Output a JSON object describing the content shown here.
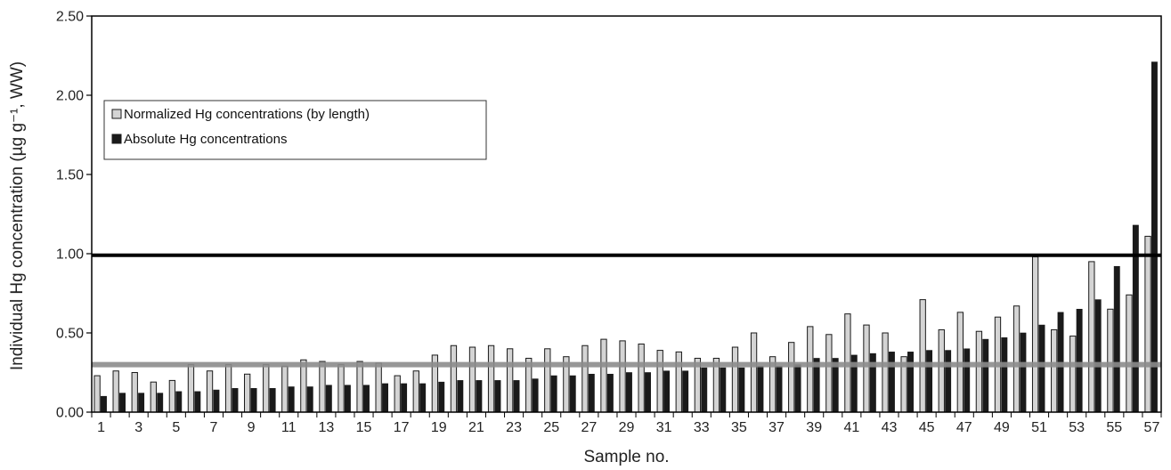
{
  "chart_data": {
    "type": "bar",
    "xlabel": "Sample no.",
    "ylabel": "Individual Hg concentration (µg g⁻¹, WW)",
    "ylim": [
      0,
      2.5
    ],
    "yticks": [
      "0.00",
      "0.50",
      "1.00",
      "1.50",
      "2.00",
      "2.50"
    ],
    "xticks": [
      "1",
      "3",
      "5",
      "7",
      "9",
      "11",
      "13",
      "15",
      "17",
      "19",
      "21",
      "23",
      "25",
      "27",
      "29",
      "31",
      "33",
      "35",
      "37",
      "39",
      "41",
      "43",
      "45",
      "47",
      "49",
      "51",
      "53",
      "55",
      "57"
    ],
    "categories": [
      1,
      2,
      3,
      4,
      5,
      6,
      7,
      8,
      9,
      10,
      11,
      12,
      13,
      14,
      15,
      16,
      17,
      18,
      19,
      20,
      21,
      22,
      23,
      24,
      25,
      26,
      27,
      28,
      29,
      30,
      31,
      32,
      33,
      34,
      35,
      36,
      37,
      38,
      39,
      40,
      41,
      42,
      43,
      44,
      45,
      46,
      47,
      48,
      49,
      50,
      51,
      52,
      53,
      54,
      55,
      56,
      57
    ],
    "series": [
      {
        "name": "Normalized Hg concentrations (by length)",
        "color": "#d4d4d4",
        "values": [
          0.23,
          0.26,
          0.25,
          0.19,
          0.2,
          0.3,
          0.26,
          0.3,
          0.24,
          0.3,
          0.29,
          0.33,
          0.32,
          0.3,
          0.32,
          0.31,
          0.23,
          0.26,
          0.36,
          0.42,
          0.41,
          0.42,
          0.4,
          0.34,
          0.4,
          0.35,
          0.42,
          0.46,
          0.45,
          0.43,
          0.39,
          0.38,
          0.34,
          0.34,
          0.41,
          0.5,
          0.35,
          0.44,
          0.54,
          0.49,
          0.62,
          0.55,
          0.5,
          0.35,
          0.71,
          0.52,
          0.63,
          0.51,
          0.6,
          0.67,
          0.98,
          0.52,
          0.48,
          0.95,
          0.65,
          0.74,
          1.11
        ]
      },
      {
        "name": "Absolute Hg concentrations",
        "color": "#1a1a1a",
        "values": [
          0.1,
          0.12,
          0.12,
          0.12,
          0.13,
          0.13,
          0.14,
          0.15,
          0.15,
          0.15,
          0.16,
          0.16,
          0.17,
          0.17,
          0.17,
          0.18,
          0.18,
          0.18,
          0.19,
          0.2,
          0.2,
          0.2,
          0.2,
          0.21,
          0.23,
          0.23,
          0.24,
          0.24,
          0.25,
          0.25,
          0.26,
          0.26,
          0.28,
          0.28,
          0.28,
          0.29,
          0.29,
          0.3,
          0.34,
          0.34,
          0.36,
          0.37,
          0.38,
          0.38,
          0.39,
          0.39,
          0.4,
          0.46,
          0.47,
          0.5,
          0.55,
          0.63,
          0.65,
          0.71,
          0.92,
          1.18,
          2.21
        ]
      }
    ],
    "reference_lines": [
      {
        "value": 0.3,
        "color": "#8c8c8c"
      },
      {
        "value": 0.99,
        "color": "#000000"
      }
    ],
    "legend": "top-left",
    "grid": false
  }
}
